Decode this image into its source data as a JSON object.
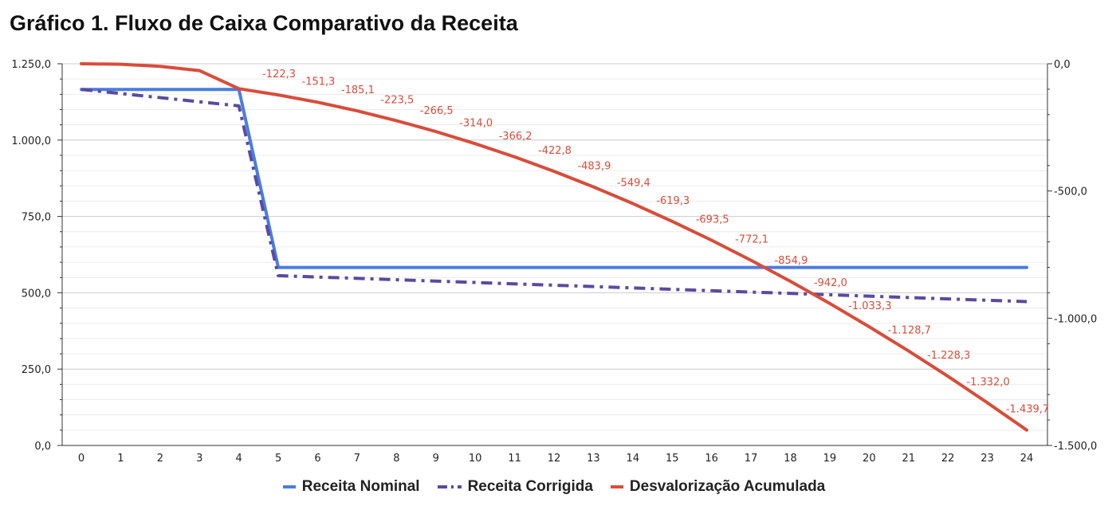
{
  "chart_data": {
    "type": "line",
    "title": "Gráfico 1. Fluxo de Caixa Comparativo da Receita",
    "x": [
      0,
      1,
      2,
      3,
      4,
      5,
      6,
      7,
      8,
      9,
      10,
      11,
      12,
      13,
      14,
      15,
      16,
      17,
      18,
      19,
      20,
      21,
      22,
      23,
      24
    ],
    "y_left": {
      "ticks": [
        "0,0",
        "250,0",
        "500,0",
        "750,0",
        "1.000,0",
        "1.250,0"
      ],
      "ylim": [
        0,
        1250
      ]
    },
    "y_right": {
      "ticks": [
        "0,0",
        "-500,0",
        "-1.000,0",
        "-1.500,0"
      ],
      "ylim": [
        -1500,
        0
      ]
    },
    "grid": true,
    "legend_position": "bottom",
    "series": [
      {
        "name": "Receita Nominal",
        "axis": "left",
        "color": "#4a7de0",
        "style": "solid",
        "x": [
          0,
          4,
          5,
          24
        ],
        "values": [
          1166,
          1166,
          583,
          583
        ]
      },
      {
        "name": "Receita Corrigida",
        "axis": "left",
        "color": "#5b4a9e",
        "style": "dashdot",
        "x": [
          0,
          4,
          5,
          24
        ],
        "values": [
          1166,
          1112,
          556,
          471
        ]
      },
      {
        "name": "Desvalorização Acumulada",
        "axis": "right",
        "color": "#d94c3a",
        "style": "solid",
        "x": [
          0,
          1,
          2,
          3,
          4,
          5,
          6,
          7,
          8,
          9,
          10,
          11,
          12,
          13,
          14,
          15,
          16,
          17,
          18,
          19,
          20,
          21,
          22,
          23,
          24
        ],
        "values": [
          0,
          -2,
          -10,
          -27,
          -98,
          -122.3,
          -151.3,
          -185.1,
          -223.5,
          -266.5,
          -314.0,
          -366.2,
          -422.8,
          -483.9,
          -549.4,
          -619.3,
          -693.5,
          -772.1,
          -854.9,
          -942.0,
          -1033.3,
          -1128.7,
          -1228.3,
          -1332.0,
          -1439.7
        ],
        "labels_from_x": 5,
        "labels": [
          "-122,3",
          "-151,3",
          "-185,1",
          "-223,5",
          "-266,5",
          "-314,0",
          "-366,2",
          "-422,8",
          "-483,9",
          "-549,4",
          "-619,3",
          "-693,5",
          "-772,1",
          "-854,9",
          "-942,0",
          "-1.033,3",
          "-1.128,7",
          "-1.228,3",
          "-1.332,0",
          "-1.439,7"
        ]
      }
    ]
  }
}
